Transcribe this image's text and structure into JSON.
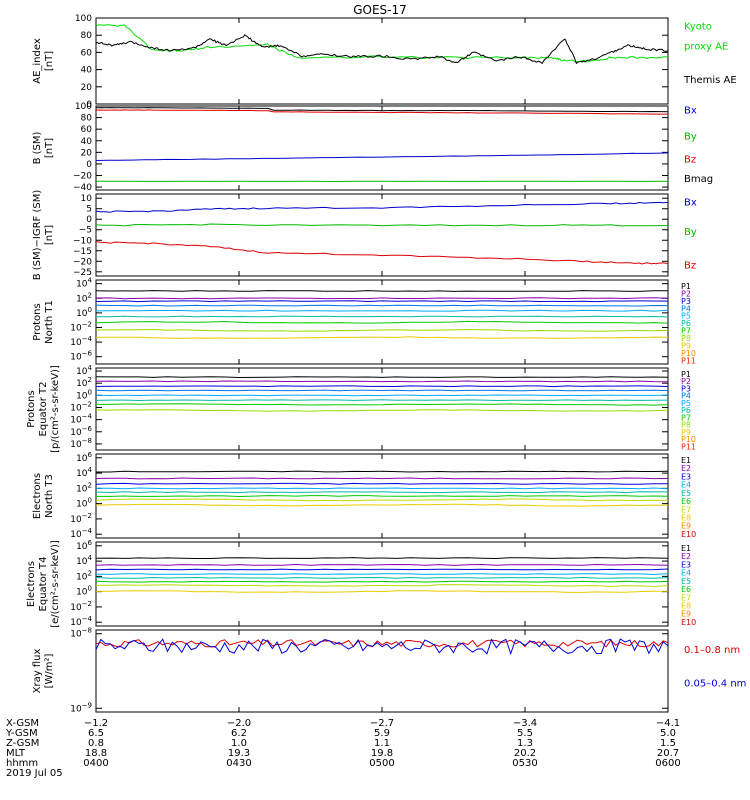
{
  "title": "GOES-17",
  "chart_data": [
    {
      "type": "line",
      "id": "ae",
      "ylabel": [
        "AE_index",
        "[nT]"
      ],
      "yticks": [
        "100",
        "80",
        "60",
        "40",
        "20",
        "0"
      ],
      "ylim": [
        0,
        100
      ],
      "series": [
        {
          "name": "Kyoto proxy AE",
          "color": "#00dd00",
          "x": [
            0,
            0.05,
            0.1,
            0.15,
            0.2,
            0.3,
            0.35,
            0.5,
            0.6,
            0.75,
            0.8,
            0.82,
            0.87,
            0.9,
            0.95,
            1.0
          ],
          "y": [
            91,
            91,
            62,
            62,
            66,
            69,
            54,
            55,
            54,
            54,
            54,
            50,
            50,
            54,
            54,
            54
          ]
        },
        {
          "name": "Themis AE",
          "color": "#000000",
          "x": [
            0,
            0.03,
            0.06,
            0.1,
            0.13,
            0.17,
            0.2,
            0.23,
            0.26,
            0.29,
            0.32,
            0.36,
            0.4,
            0.45,
            0.5,
            0.55,
            0.6,
            0.63,
            0.66,
            0.7,
            0.74,
            0.78,
            0.82,
            0.84,
            0.87,
            0.9,
            0.93,
            0.96,
            1.0
          ],
          "y": [
            72,
            68,
            72,
            65,
            62,
            65,
            75,
            68,
            80,
            66,
            68,
            56,
            58,
            55,
            56,
            52,
            55,
            48,
            60,
            50,
            55,
            48,
            76,
            48,
            52,
            60,
            68,
            64,
            62
          ]
        }
      ],
      "labels": [
        {
          "text": "Kyoto",
          "color": "#00dd00",
          "y": 90
        },
        {
          "text": "proxy AE",
          "color": "#00dd00",
          "y": 67
        },
        {
          "text": "Themis AE",
          "color": "#000000",
          "y": 28
        }
      ]
    },
    {
      "type": "line",
      "id": "bsm",
      "ylabel": [
        "B (SM)",
        "[nT]"
      ],
      "yticks": [
        "100",
        "80",
        "60",
        "40",
        "20",
        "0",
        "−20",
        "−40"
      ],
      "ylim": [
        -45,
        100
      ],
      "series": [
        {
          "name": "Bx",
          "color": "#0000cc",
          "x": [
            0,
            0.25,
            0.5,
            0.75,
            1.0
          ],
          "y": [
            6,
            9,
            12,
            15,
            19
          ]
        },
        {
          "name": "By",
          "color": "#00bb00",
          "x": [
            0,
            0.5,
            1.0
          ],
          "y": [
            -30,
            -30,
            -30
          ]
        },
        {
          "name": "Bz",
          "color": "#dd0000",
          "x": [
            0,
            0.1,
            0.3,
            0.31,
            0.5,
            0.7,
            1.0
          ],
          "y": [
            93,
            93,
            92,
            90,
            89,
            88,
            86
          ]
        },
        {
          "name": "Bmag",
          "color": "#000000",
          "x": [
            0,
            0.1,
            0.3,
            0.31,
            0.5,
            0.7,
            1.0
          ],
          "y": [
            97,
            97,
            96,
            93,
            92,
            92,
            90
          ]
        }
      ],
      "labels": [
        {
          "text": "Bx",
          "color": "#0000cc",
          "y": 92
        },
        {
          "text": "By",
          "color": "#00bb00",
          "y": 47
        },
        {
          "text": "Bz",
          "color": "#dd0000",
          "y": 8
        },
        {
          "text": "Bmag",
          "color": "#000000",
          "y": -26
        }
      ]
    },
    {
      "type": "line",
      "id": "bigrf",
      "ylabel": [
        "B (SM)−IGRF (SM)",
        "[nT]"
      ],
      "yticks": [
        "10",
        "5",
        "0",
        "−5",
        "−10",
        "−15",
        "−20",
        "−25"
      ],
      "ylim": [
        -27,
        12
      ],
      "series": [
        {
          "name": "Bx",
          "color": "#0000cc",
          "x": [
            0,
            0.1,
            0.2,
            0.3,
            0.5,
            0.7,
            0.9,
            1.0
          ],
          "y": [
            3.5,
            3.8,
            4.8,
            5.2,
            5.5,
            6.5,
            7.5,
            8
          ]
        },
        {
          "name": "By",
          "color": "#00bb00",
          "x": [
            0,
            0.2,
            0.5,
            0.8,
            1.0
          ],
          "y": [
            -3,
            -2.5,
            -3,
            -2.8,
            -3
          ]
        },
        {
          "name": "Bz",
          "color": "#dd0000",
          "x": [
            0,
            0.1,
            0.2,
            0.3,
            0.5,
            0.7,
            0.85,
            0.95,
            1.0
          ],
          "y": [
            -11,
            -11.5,
            -13,
            -16,
            -17,
            -18.5,
            -20,
            -21,
            -21
          ]
        }
      ],
      "labels": [
        {
          "text": "Bx",
          "color": "#0000cc",
          "y": 8
        },
        {
          "text": "By",
          "color": "#00bb00",
          "y": -6
        },
        {
          "text": "Bz",
          "color": "#dd0000",
          "y": -22
        }
      ]
    },
    {
      "type": "line",
      "id": "pn",
      "scale": "log",
      "ylabel": [
        "Protons",
        "North T1"
      ],
      "ylim": [
        -7,
        4.5
      ],
      "ytick_exps": [
        4,
        2,
        0,
        -2,
        -4,
        -6
      ],
      "series_exps": [
        3,
        2,
        1.6,
        1.0,
        0.3,
        -0.5,
        -1.3,
        -2.4,
        -3.4
      ],
      "labels": [
        "P1",
        "P2",
        "P3",
        "P4",
        "P5",
        "P6",
        "P7",
        "P8",
        "P9",
        "P10",
        "P11"
      ],
      "colors": [
        "#000000",
        "#8b00aa",
        "#0000dd",
        "#0077ee",
        "#00aaff",
        "#00bbaa",
        "#00cc00",
        "#99dd00",
        "#eecc00",
        "#ff8800",
        "#ff2200",
        "#cc0000"
      ],
      "label_exps": [
        4,
        3.2,
        2.4,
        1.6,
        0.8,
        0,
        -0.8,
        -1.6,
        -2.5,
        -3.4,
        -4.2,
        -5.2,
        -6.0
      ]
    },
    {
      "type": "line",
      "id": "pe",
      "scale": "log",
      "ylabel": [
        "Protons",
        "Equator T2",
        "[p/(cm²-s-sr-keV)]"
      ],
      "ylim": [
        -9,
        4.5
      ],
      "ytick_exps": [
        4,
        2,
        0,
        -2,
        -4,
        -6,
        -8
      ],
      "series_exps": [
        3,
        2.3,
        1.5,
        0.8,
        0,
        -0.8,
        -1.5,
        -2.5
      ],
      "labels": [
        "P1",
        "P2",
        "P3",
        "P4",
        "P5",
        "P6",
        "P7",
        "P8",
        "P9",
        "P10",
        "P11"
      ],
      "colors": [
        "#000000",
        "#8b00aa",
        "#0000dd",
        "#0077ee",
        "#00aaff",
        "#00bbaa",
        "#00cc00",
        "#99dd00",
        "#eecc00",
        "#ff8800",
        "#ff2200",
        "#cc0000"
      ]
    },
    {
      "type": "line",
      "id": "en",
      "scale": "log",
      "ylabel": [
        "Electrons",
        "North T3"
      ],
      "ylim": [
        -4.5,
        6.5
      ],
      "ytick_exps": [
        6,
        4,
        2,
        0,
        -2,
        -4
      ],
      "series_exps": [
        4.2,
        3.3,
        2.6,
        2.0,
        1.5,
        1.0,
        0.5,
        -0.2
      ],
      "labels": [
        "E1",
        "E2",
        "E3",
        "E4",
        "E5",
        "E6",
        "E7",
        "E8",
        "E9",
        "E10"
      ],
      "colors": [
        "#000000",
        "#8b00aa",
        "#0000dd",
        "#00aaff",
        "#00bbaa",
        "#00cc00",
        "#bbdd00",
        "#eecc00",
        "#ff8800",
        "#cc0000"
      ]
    },
    {
      "type": "line",
      "id": "ee",
      "scale": "log",
      "ylabel": [
        "Electrons",
        "Equator T4",
        "[e/(cm²-s-sr-keV)]"
      ],
      "ylim": [
        -4.5,
        6.5
      ],
      "ytick_exps": [
        6,
        4,
        2,
        0,
        -2,
        -4
      ],
      "series_exps": [
        4.4,
        3.5,
        2.9,
        2.3,
        1.8,
        1.3,
        0.8,
        0.0
      ],
      "labels": [
        "E1",
        "E2",
        "E3",
        "E4",
        "E5",
        "E6",
        "E7",
        "E8",
        "E9",
        "E10"
      ],
      "colors": [
        "#000000",
        "#8b00aa",
        "#0000dd",
        "#00aaff",
        "#00bbaa",
        "#00cc00",
        "#bbdd00",
        "#eecc00",
        "#ff8800",
        "#cc0000"
      ]
    },
    {
      "type": "line",
      "id": "xray",
      "scale": "log",
      "ylabel": [
        "Xray flux",
        "[W/m²]"
      ],
      "ylim": [
        -9.05,
        -7.95
      ],
      "ytick_exps": [
        -8,
        -9
      ],
      "series": [
        {
          "name": "0.1–0.8 nm",
          "color": "#dd0000",
          "center": -8.13,
          "amp": 0.05
        },
        {
          "name": "0.05–0.4 nm",
          "color": "#0000dd",
          "center": -8.17,
          "amp": 0.1
        }
      ],
      "labels": [
        {
          "text": "0.1–0.8 nm",
          "color": "#dd0000",
          "exp": -8.22
        },
        {
          "text": "0.05–0.4 nm",
          "color": "#0000dd",
          "exp": -8.67
        }
      ]
    }
  ],
  "xaxis": {
    "rows": [
      {
        "label": "X-GSM",
        "values": [
          "−1.2",
          "−2.0",
          "−2.7",
          "−3.4",
          "−4.1"
        ]
      },
      {
        "label": "Y-GSM",
        "values": [
          "6.5",
          "6.2",
          "5.9",
          "5.5",
          "5.0"
        ]
      },
      {
        "label": "Z-GSM",
        "values": [
          "0.8",
          "1.0",
          "1.1",
          "1.3",
          "1.5"
        ]
      },
      {
        "label": "MLT",
        "values": [
          "18.8",
          "19.3",
          "19.8",
          "20.2",
          "20.7"
        ]
      },
      {
        "label": "hhmm",
        "values": [
          "0400",
          "0430",
          "0500",
          "0530",
          "0600"
        ]
      }
    ],
    "date": "2019 Jul 05"
  }
}
